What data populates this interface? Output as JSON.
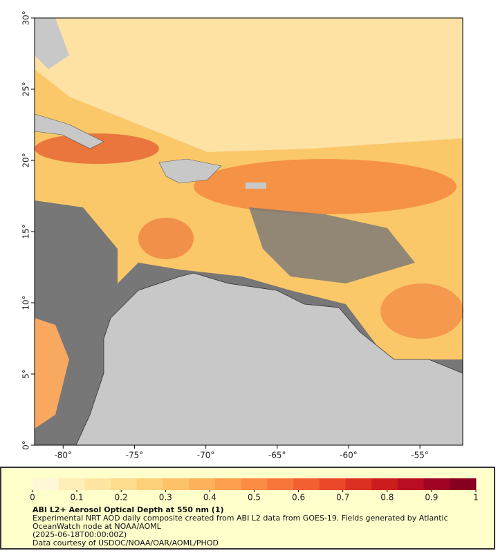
{
  "map": {
    "xlim": [
      -82,
      -52
    ],
    "ylim": [
      0,
      30
    ],
    "xticks": [
      {
        "value": -80,
        "label": "-80°"
      },
      {
        "value": -75,
        "label": "-75°"
      },
      {
        "value": -70,
        "label": "-70°"
      },
      {
        "value": -65,
        "label": "-65°"
      },
      {
        "value": -60,
        "label": "-60°"
      },
      {
        "value": -55,
        "label": "-55°"
      }
    ],
    "yticks": [
      {
        "value": 0,
        "label": "0°"
      },
      {
        "value": 5,
        "label": "5°"
      },
      {
        "value": 10,
        "label": "10°"
      },
      {
        "value": 15,
        "label": "15°"
      },
      {
        "value": 20,
        "label": "20°"
      },
      {
        "value": 25,
        "label": "25°"
      },
      {
        "value": 30,
        "label": "30°"
      }
    ]
  },
  "colorbar": {
    "lim": [
      0,
      1
    ],
    "ticks": [
      0,
      0.1,
      0.2,
      0.3,
      0.4,
      0.5,
      0.6,
      0.7,
      0.8,
      0.9,
      1
    ],
    "colors": [
      "#fff8d8",
      "#ffeeb8",
      "#fee6a2",
      "#fedc8e",
      "#fdd07a",
      "#fdc268",
      "#fdb25a",
      "#fca04e",
      "#fc8c44",
      "#f9763a",
      "#f45f31",
      "#ea4828",
      "#dc3122",
      "#cc1c1e",
      "#b80d22",
      "#a00424",
      "#880020"
    ]
  },
  "caption": {
    "title": "ABI L2+ Aerosol Optical Depth at 550 nm (1)",
    "description": "Experimental NRT AOD daily composite created from ABI L2 data from GOES-19. Fields generated by Atlantic OceanWatch node at NOAA/AOML",
    "time": "(2025-06-18T00:00:00Z)",
    "credit": "Data courtesy of USDOC/NOAA/OAR/AOML/PHOD"
  }
}
